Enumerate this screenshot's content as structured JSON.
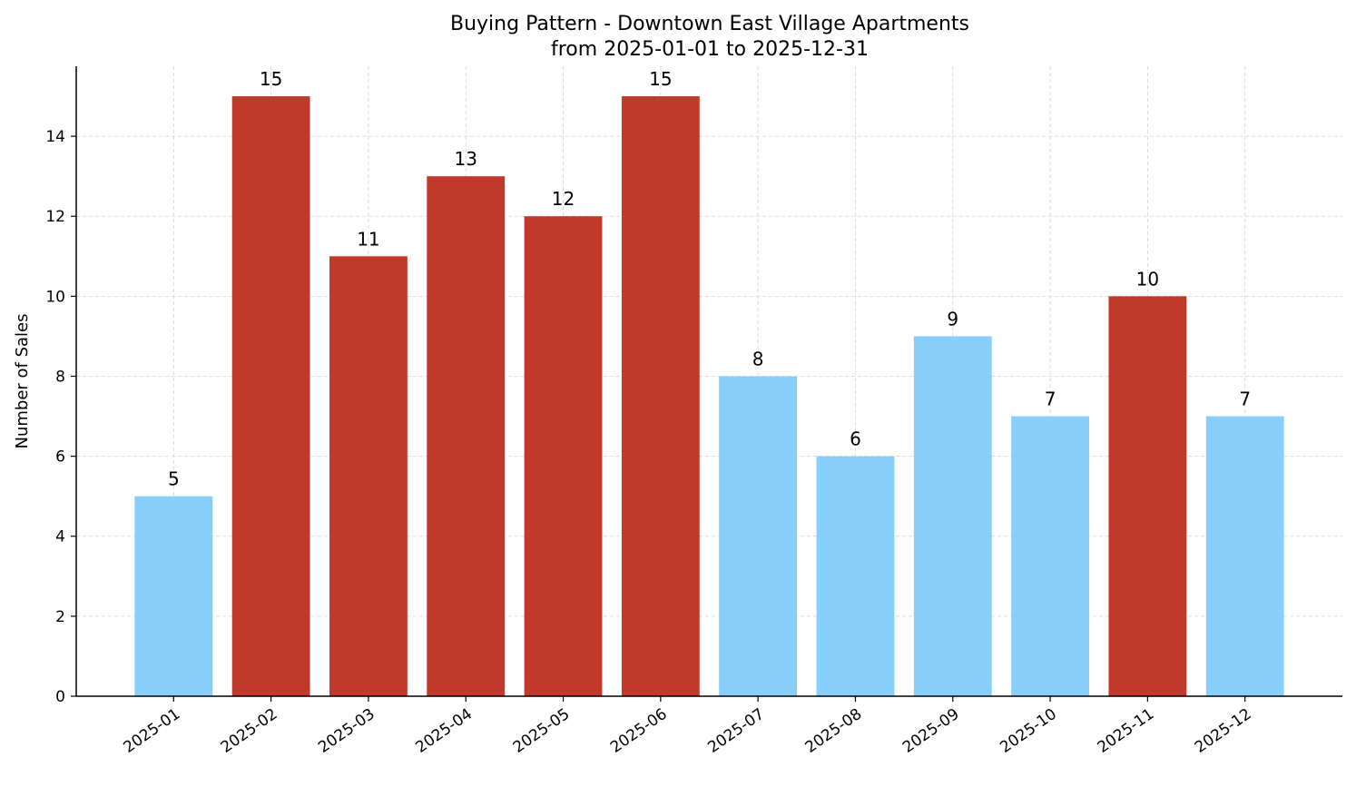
{
  "chart_data": {
    "type": "bar",
    "title": "Buying Pattern - Downtown East Village Apartments",
    "subtitle": "from 2025-01-01 to 2025-12-31",
    "xlabel": "",
    "ylabel": "Number of Sales",
    "categories": [
      "2025-01",
      "2025-02",
      "2025-03",
      "2025-04",
      "2025-05",
      "2025-06",
      "2025-07",
      "2025-08",
      "2025-09",
      "2025-10",
      "2025-11",
      "2025-12"
    ],
    "values": [
      5,
      15,
      11,
      13,
      12,
      15,
      8,
      6,
      9,
      7,
      10,
      7
    ],
    "bar_colors": [
      "#87cefa",
      "#c0392b",
      "#c0392b",
      "#c0392b",
      "#c0392b",
      "#c0392b",
      "#87cefa",
      "#87cefa",
      "#87cefa",
      "#87cefa",
      "#c0392b",
      "#87cefa"
    ],
    "ylim": [
      0,
      15.75
    ],
    "yticks": [
      0,
      2,
      4,
      6,
      8,
      10,
      12,
      14
    ],
    "grid": true,
    "data_labels": true
  }
}
